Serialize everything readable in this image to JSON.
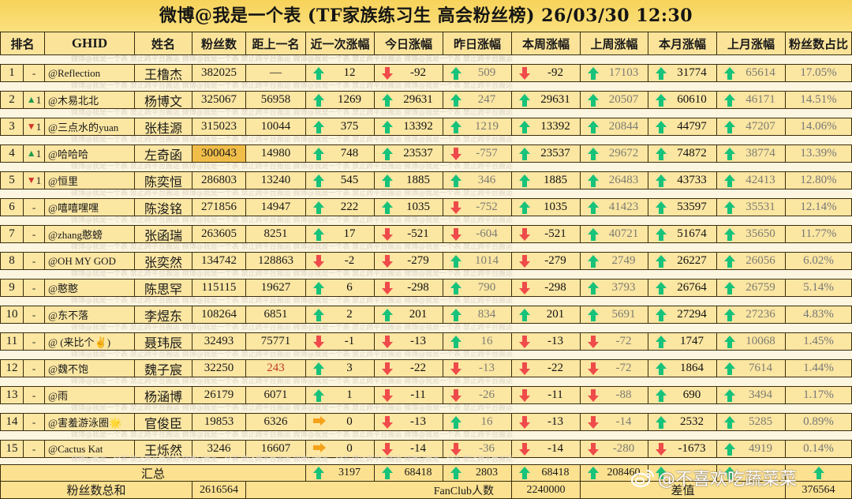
{
  "title": "微博@我是一个表 (TF家族练习生 高会粉丝榜)  26/03/30 12:30",
  "watermark_text": "微博@我是一个表   禁止跨平台搬运   微博@我是一个表   禁止跨平台搬运   微博@我是一个表   禁止跨平台搬运   微博@我是一个表   禁止跨平台搬运",
  "headers": {
    "rank": "排名",
    "ghid": "GHID",
    "name": "姓名",
    "fans": "粉丝数",
    "gap": "距上一名",
    "latest": "近一次涨幅",
    "today": "今日涨幅",
    "yesterday": "昨日涨幅",
    "this_week": "本周涨幅",
    "last_week": "上周涨幅",
    "this_month": "本月涨幅",
    "last_month": "上月涨幅",
    "share": "粉丝数占比"
  },
  "colors": {
    "title_bg": "#f7d35a",
    "row_bg": "#fbe6a2",
    "highlight": "#f1bd49",
    "up": "#17c27a",
    "down": "#ef4b4b",
    "flat": "#f5a21b",
    "border": "#3a2c10"
  },
  "rows": [
    {
      "rank": "1",
      "change": "-",
      "change_dir": "none",
      "ghid": "@Reflection",
      "name": "王橹杰",
      "fans": "382025",
      "gap": "—",
      "latest": "12",
      "latest_dir": "up",
      "today": "-92",
      "today_dir": "down",
      "yesterday": "509",
      "yesterday_dir": "up",
      "this_week": "-92",
      "this_week_dir": "down",
      "last_week": "17103",
      "last_week_dir": "up",
      "this_month": "31774",
      "this_month_dir": "up",
      "last_month": "65614",
      "last_month_dir": "up",
      "share": "17.05%"
    },
    {
      "rank": "2",
      "change": "1",
      "change_dir": "up",
      "ghid": "@木易北北",
      "name": "杨博文",
      "fans": "325067",
      "gap": "56958",
      "latest": "1269",
      "latest_dir": "up",
      "today": "29631",
      "today_dir": "up",
      "yesterday": "247",
      "yesterday_dir": "up",
      "this_week": "29631",
      "this_week_dir": "up",
      "last_week": "20507",
      "last_week_dir": "up",
      "this_month": "60610",
      "this_month_dir": "up",
      "last_month": "46171",
      "last_month_dir": "up",
      "share": "14.51%"
    },
    {
      "rank": "3",
      "change": "1",
      "change_dir": "down",
      "ghid": "@三点水的yuan",
      "name": "张桂源",
      "fans": "315023",
      "gap": "10044",
      "latest": "375",
      "latest_dir": "up",
      "today": "13392",
      "today_dir": "up",
      "yesterday": "1219",
      "yesterday_dir": "up",
      "this_week": "13392",
      "this_week_dir": "up",
      "last_week": "20844",
      "last_week_dir": "up",
      "this_month": "44797",
      "this_month_dir": "up",
      "last_month": "47207",
      "last_month_dir": "up",
      "share": "14.06%"
    },
    {
      "rank": "4",
      "change": "1",
      "change_dir": "up",
      "ghid": "@哈哈哈",
      "name": "左奇函",
      "fans": "300043",
      "fans_highlight": true,
      "gap": "14980",
      "latest": "748",
      "latest_dir": "up",
      "today": "23537",
      "today_dir": "up",
      "yesterday": "-757",
      "yesterday_dir": "down",
      "this_week": "23537",
      "this_week_dir": "up",
      "last_week": "29672",
      "last_week_dir": "up",
      "this_month": "74872",
      "this_month_dir": "up",
      "last_month": "38774",
      "last_month_dir": "up",
      "share": "13.39%"
    },
    {
      "rank": "5",
      "change": "1",
      "change_dir": "down",
      "ghid": "@恒里",
      "name": "陈奕恒",
      "fans": "286803",
      "gap": "13240",
      "latest": "545",
      "latest_dir": "up",
      "today": "1885",
      "today_dir": "up",
      "yesterday": "346",
      "yesterday_dir": "up",
      "this_week": "1885",
      "this_week_dir": "up",
      "last_week": "26483",
      "last_week_dir": "up",
      "this_month": "43733",
      "this_month_dir": "up",
      "last_month": "42413",
      "last_month_dir": "up",
      "share": "12.80%"
    },
    {
      "rank": "6",
      "change": "-",
      "change_dir": "none",
      "ghid": "@嘻嘻嘿嘿",
      "name": "陈浚铭",
      "fans": "271856",
      "gap": "14947",
      "latest": "222",
      "latest_dir": "up",
      "today": "1035",
      "today_dir": "up",
      "yesterday": "-752",
      "yesterday_dir": "down",
      "this_week": "1035",
      "this_week_dir": "up",
      "last_week": "41423",
      "last_week_dir": "up",
      "this_month": "53597",
      "this_month_dir": "up",
      "last_month": "35531",
      "last_month_dir": "up",
      "share": "12.14%"
    },
    {
      "rank": "7",
      "change": "-",
      "change_dir": "none",
      "ghid": "@zhang憨螃",
      "name": "张函瑞",
      "fans": "263605",
      "gap": "8251",
      "latest": "17",
      "latest_dir": "up",
      "today": "-521",
      "today_dir": "down",
      "yesterday": "-604",
      "yesterday_dir": "down",
      "this_week": "-521",
      "this_week_dir": "down",
      "last_week": "40721",
      "last_week_dir": "up",
      "this_month": "51674",
      "this_month_dir": "up",
      "last_month": "35650",
      "last_month_dir": "up",
      "share": "11.77%"
    },
    {
      "rank": "8",
      "change": "-",
      "change_dir": "none",
      "ghid": "@OH MY GOD",
      "name": "张奕然",
      "fans": "134742",
      "gap": "128863",
      "latest": "-2",
      "latest_dir": "down",
      "today": "-279",
      "today_dir": "down",
      "yesterday": "1014",
      "yesterday_dir": "up",
      "this_week": "-279",
      "this_week_dir": "down",
      "last_week": "2749",
      "last_week_dir": "up",
      "this_month": "26227",
      "this_month_dir": "up",
      "last_month": "26056",
      "last_month_dir": "up",
      "share": "6.02%"
    },
    {
      "rank": "9",
      "change": "-",
      "change_dir": "none",
      "ghid": "@憨憨",
      "name": "陈思罕",
      "fans": "115115",
      "gap": "19627",
      "latest": "6",
      "latest_dir": "up",
      "today": "-298",
      "today_dir": "down",
      "yesterday": "790",
      "yesterday_dir": "up",
      "this_week": "-298",
      "this_week_dir": "down",
      "last_week": "3793",
      "last_week_dir": "up",
      "this_month": "26764",
      "this_month_dir": "up",
      "last_month": "26759",
      "last_month_dir": "up",
      "share": "5.14%"
    },
    {
      "rank": "10",
      "change": "-",
      "change_dir": "none",
      "ghid": "@东不落",
      "name": "李煜东",
      "fans": "108264",
      "gap": "6851",
      "latest": "2",
      "latest_dir": "up",
      "today": "201",
      "today_dir": "up",
      "yesterday": "834",
      "yesterday_dir": "up",
      "this_week": "201",
      "this_week_dir": "up",
      "last_week": "5691",
      "last_week_dir": "up",
      "this_month": "27294",
      "this_month_dir": "up",
      "last_month": "27236",
      "last_month_dir": "up",
      "share": "4.83%"
    },
    {
      "rank": "11",
      "change": "-",
      "change_dir": "none",
      "ghid": "@ (来比个✌️)",
      "name": "聂玮辰",
      "fans": "32493",
      "gap": "75771",
      "latest": "-1",
      "latest_dir": "down",
      "today": "-13",
      "today_dir": "down",
      "yesterday": "16",
      "yesterday_dir": "up",
      "this_week": "-13",
      "this_week_dir": "down",
      "last_week": "-72",
      "last_week_dir": "down",
      "this_month": "1747",
      "this_month_dir": "up",
      "last_month": "10068",
      "last_month_dir": "up",
      "share": "1.45%"
    },
    {
      "rank": "12",
      "change": "-",
      "change_dir": "none",
      "ghid": "@魏不饱",
      "name": "魏子宸",
      "fans": "32250",
      "gap": "243",
      "gap_red": true,
      "latest": "3",
      "latest_dir": "up",
      "today": "-22",
      "today_dir": "down",
      "yesterday": "-13",
      "yesterday_dir": "down",
      "this_week": "-22",
      "this_week_dir": "down",
      "last_week": "-72",
      "last_week_dir": "down",
      "this_month": "1864",
      "this_month_dir": "up",
      "last_month": "7614",
      "last_month_dir": "up",
      "share": "1.44%"
    },
    {
      "rank": "13",
      "change": "-",
      "change_dir": "none",
      "ghid": "@雨",
      "name": "杨涵博",
      "fans": "26179",
      "gap": "6071",
      "latest": "1",
      "latest_dir": "up",
      "today": "-11",
      "today_dir": "down",
      "yesterday": "-26",
      "yesterday_dir": "down",
      "this_week": "-11",
      "this_week_dir": "down",
      "last_week": "-88",
      "last_week_dir": "down",
      "this_month": "690",
      "this_month_dir": "up",
      "last_month": "3494",
      "last_month_dir": "up",
      "share": "1.17%"
    },
    {
      "rank": "14",
      "change": "-",
      "change_dir": "none",
      "ghid": "@害羞游泳圈🌟",
      "name": "官俊臣",
      "fans": "19853",
      "gap": "6326",
      "latest": "0",
      "latest_dir": "flat",
      "today": "-13",
      "today_dir": "down",
      "yesterday": "16",
      "yesterday_dir": "up",
      "this_week": "-13",
      "this_week_dir": "down",
      "last_week": "-14",
      "last_week_dir": "down",
      "this_month": "2532",
      "this_month_dir": "up",
      "last_month": "5285",
      "last_month_dir": "up",
      "share": "0.89%"
    },
    {
      "rank": "15",
      "change": "-",
      "change_dir": "none",
      "ghid": "@Cactus Kat",
      "name": "王烁然",
      "fans": "3246",
      "gap": "16607",
      "latest": "0",
      "latest_dir": "flat",
      "today": "-14",
      "today_dir": "down",
      "yesterday": "-36",
      "yesterday_dir": "down",
      "this_week": "-14",
      "this_week_dir": "down",
      "last_week": "-280",
      "last_week_dir": "down",
      "this_month": "-1673",
      "this_month_dir": "down",
      "last_month": "4919",
      "last_month_dir": "up",
      "share": "0.14%"
    }
  ],
  "summary": {
    "label": "汇总",
    "latest": "3197",
    "today": "68418",
    "yesterday": "2803",
    "this_week": "68418",
    "last_week": "208460"
  },
  "footer": {
    "total_label": "粉丝数总和",
    "total_value": "2616564",
    "fanclub_label": "FanClub人数",
    "fanclub_value": "2240000",
    "diff_label": "差值",
    "diff_value": "376564"
  },
  "weibo_watermark": "@不喜欢吃蔬菜菜"
}
